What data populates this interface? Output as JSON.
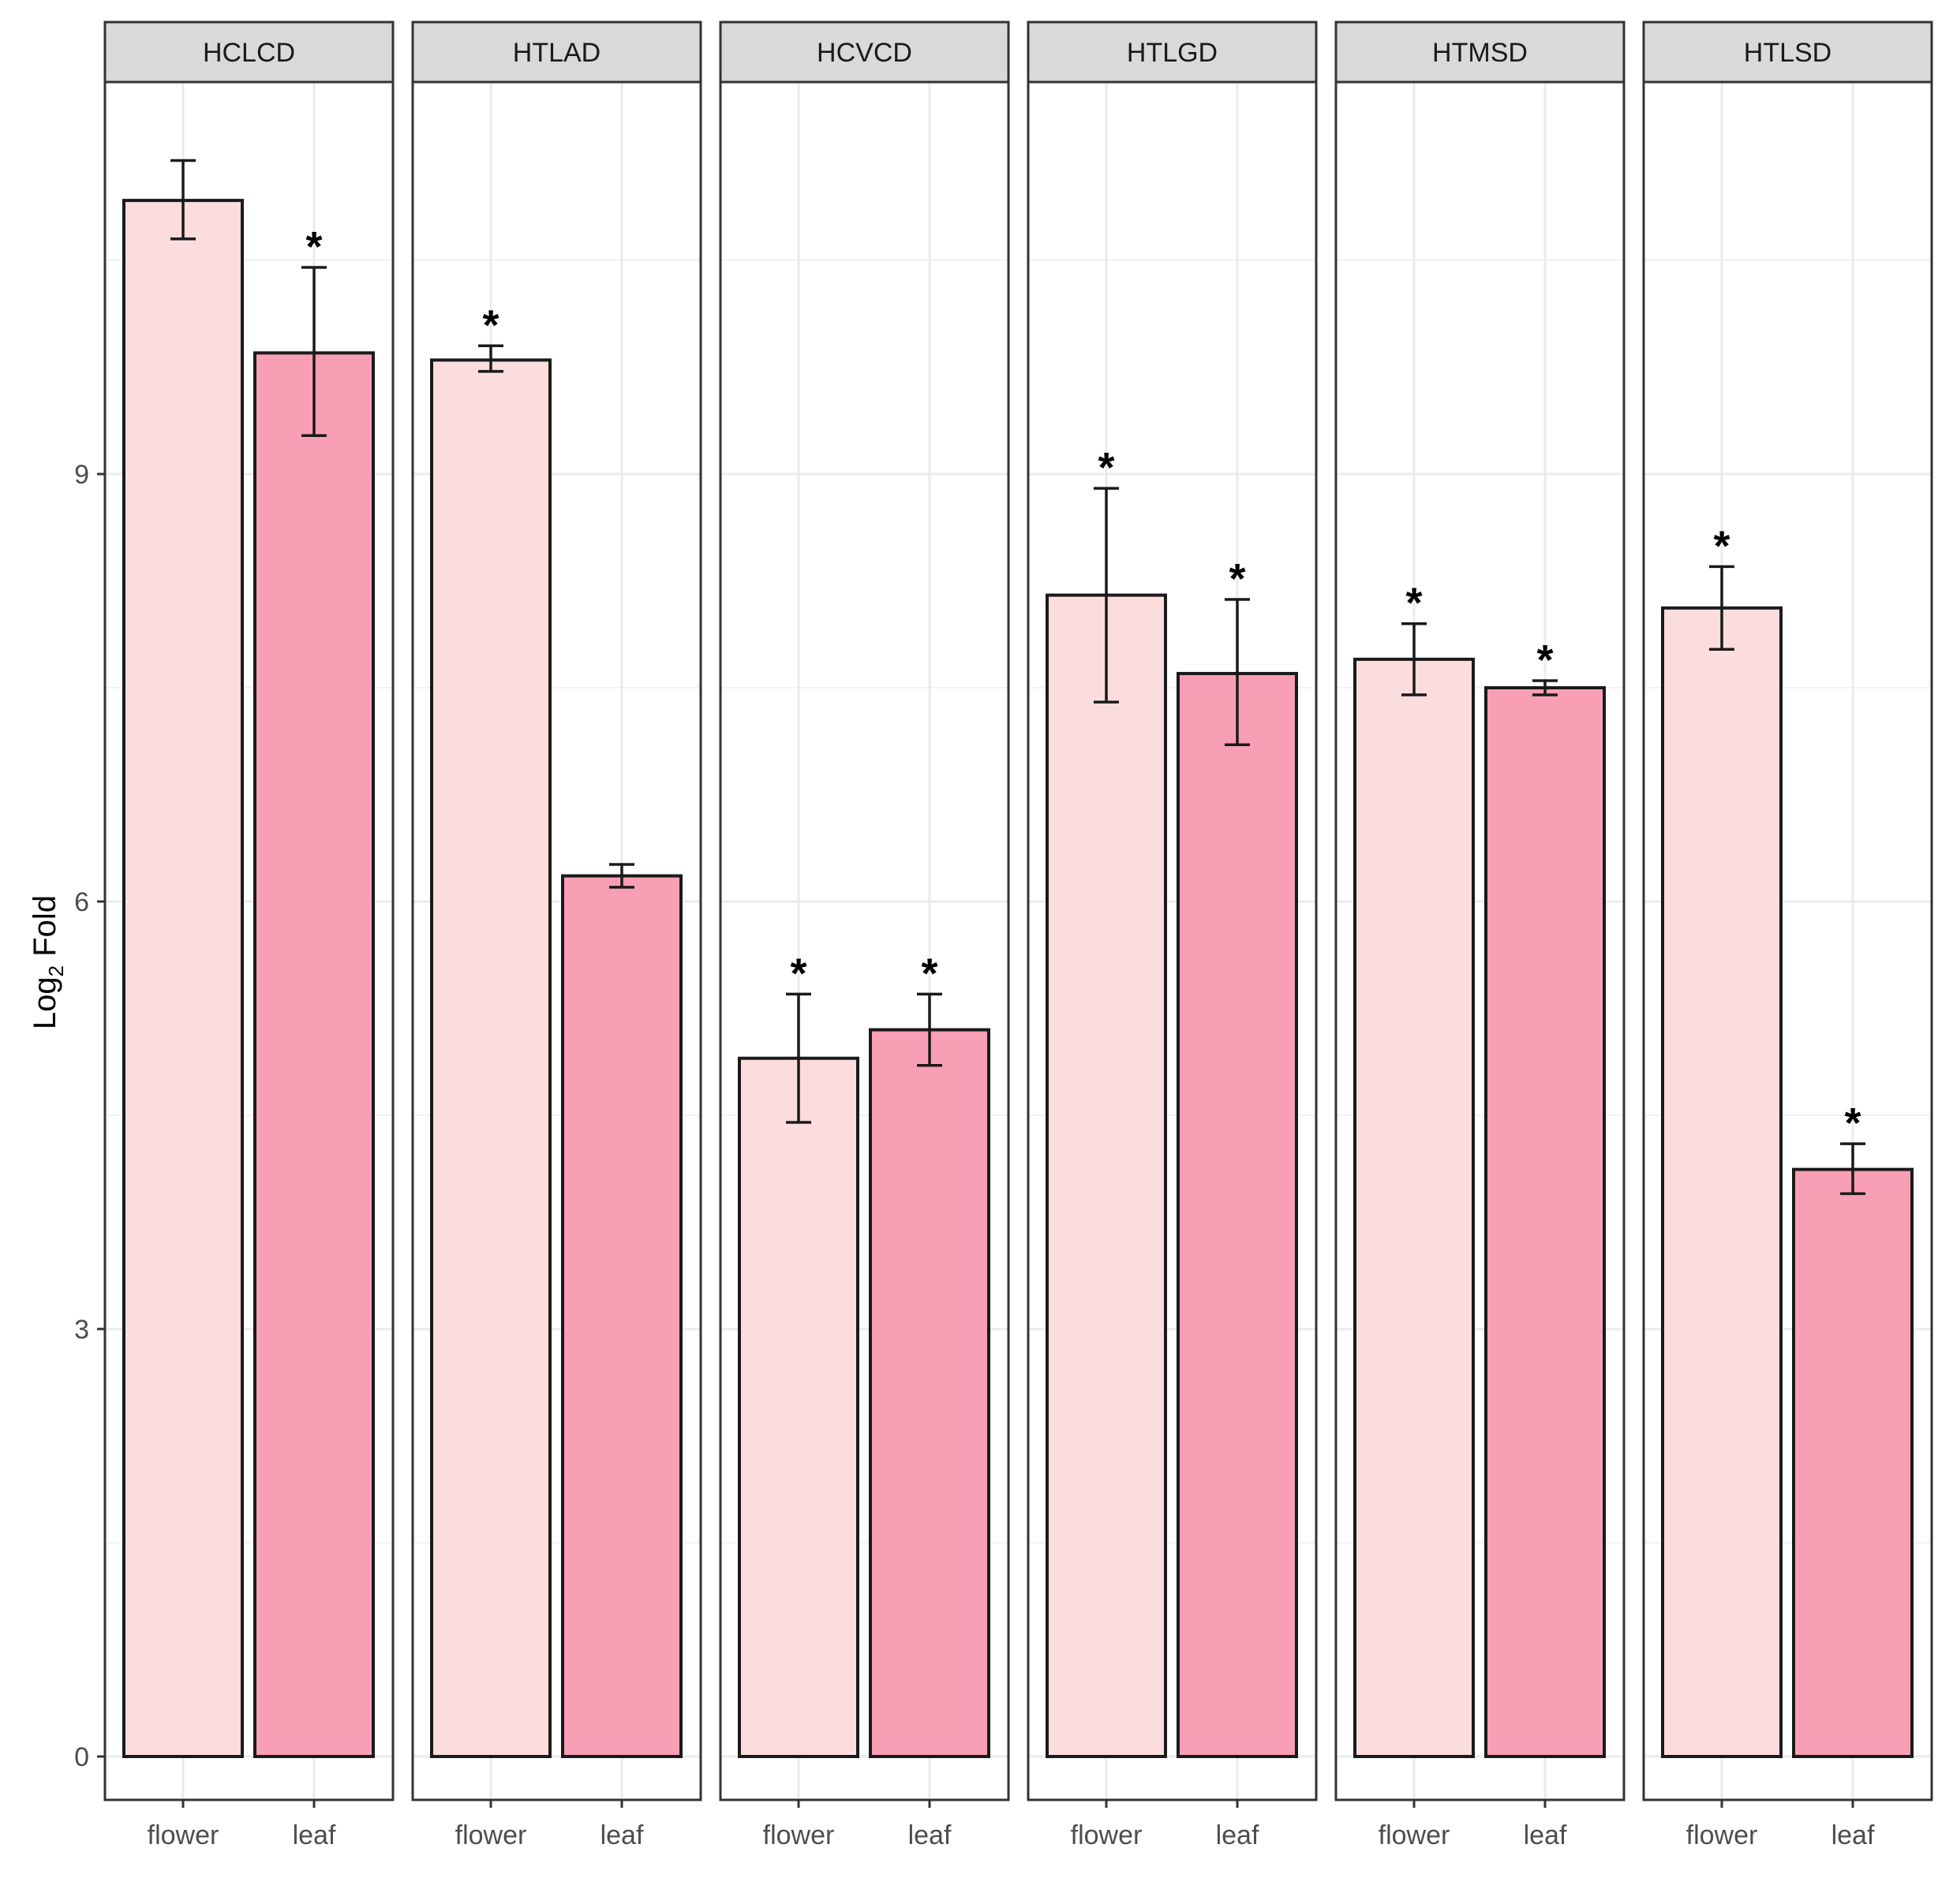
{
  "chart_data": {
    "type": "bar",
    "ylabel_main": "Log",
    "ylabel_sub": "2",
    "ylabel_rest": " Fold",
    "ylim": [
      -0.3,
      11.3
    ],
    "yticks": [
      0,
      3,
      6,
      9
    ],
    "ytick_labels": [
      "0",
      "3",
      "6",
      "9"
    ],
    "categories": [
      "flower",
      "leaf"
    ],
    "colors": {
      "flower": "#FCDDDD",
      "leaf": "#F99FB5"
    },
    "panels": [
      {
        "name": "HCLCD",
        "bars": [
          {
            "category": "flower",
            "value": 10.92,
            "err_low": 10.65,
            "err_high": 11.2,
            "sig": ""
          },
          {
            "category": "leaf",
            "value": 9.85,
            "err_low": 9.27,
            "err_high": 10.45,
            "sig": "*"
          }
        ]
      },
      {
        "name": "HTLAD",
        "bars": [
          {
            "category": "flower",
            "value": 9.8,
            "err_low": 9.72,
            "err_high": 9.9,
            "sig": "*"
          },
          {
            "category": "leaf",
            "value": 6.18,
            "err_low": 6.1,
            "err_high": 6.26,
            "sig": ""
          }
        ]
      },
      {
        "name": "HCVCD",
        "bars": [
          {
            "category": "flower",
            "value": 4.9,
            "err_low": 4.45,
            "err_high": 5.35,
            "sig": "*"
          },
          {
            "category": "leaf",
            "value": 5.1,
            "err_low": 4.85,
            "err_high": 5.35,
            "sig": "*"
          }
        ]
      },
      {
        "name": "HTLGD",
        "bars": [
          {
            "category": "flower",
            "value": 8.15,
            "err_low": 7.4,
            "err_high": 8.9,
            "sig": "*"
          },
          {
            "category": "leaf",
            "value": 7.6,
            "err_low": 7.1,
            "err_high": 8.12,
            "sig": "*"
          }
        ]
      },
      {
        "name": "HTMSD",
        "bars": [
          {
            "category": "flower",
            "value": 7.7,
            "err_low": 7.45,
            "err_high": 7.95,
            "sig": "*"
          },
          {
            "category": "leaf",
            "value": 7.5,
            "err_low": 7.45,
            "err_high": 7.55,
            "sig": "*"
          }
        ]
      },
      {
        "name": "HTLSD",
        "bars": [
          {
            "category": "flower",
            "value": 8.06,
            "err_low": 7.77,
            "err_high": 8.35,
            "sig": "*"
          },
          {
            "category": "leaf",
            "value": 4.12,
            "err_low": 3.95,
            "err_high": 4.3,
            "sig": "*"
          }
        ]
      }
    ]
  }
}
